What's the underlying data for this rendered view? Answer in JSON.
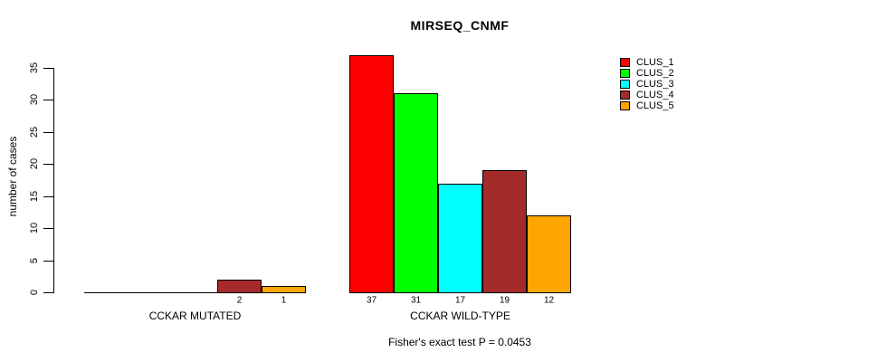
{
  "chart_data": {
    "type": "bar",
    "title": "MIRSEQ_CNMF",
    "ylabel": "number of cases",
    "xlabel": "",
    "groups": [
      "CCKAR MUTATED",
      "CCKAR WILD-TYPE"
    ],
    "series": [
      {
        "name": "CLUS_1",
        "color": "#FF0000",
        "values": [
          0,
          37
        ]
      },
      {
        "name": "CLUS_2",
        "color": "#00FF00",
        "values": [
          0,
          31
        ]
      },
      {
        "name": "CLUS_3",
        "color": "#00FFFF",
        "values": [
          0,
          17
        ]
      },
      {
        "name": "CLUS_4",
        "color": "#A52A2A",
        "values": [
          2,
          19
        ]
      },
      {
        "name": "CLUS_5",
        "color": "#FFA500",
        "values": [
          1,
          12
        ]
      }
    ],
    "yticks": [
      0,
      5,
      10,
      15,
      20,
      25,
      30,
      35
    ],
    "axis_range": [
      0,
      35
    ],
    "grid": false,
    "legend_position": "top-right",
    "bar_value_labels_shown_when_zero": false,
    "footnote": "Fisher's exact test P = 0.0453"
  },
  "colors": {
    "background": "#FFFFFF",
    "axis": "#000000",
    "text": "#000000"
  }
}
